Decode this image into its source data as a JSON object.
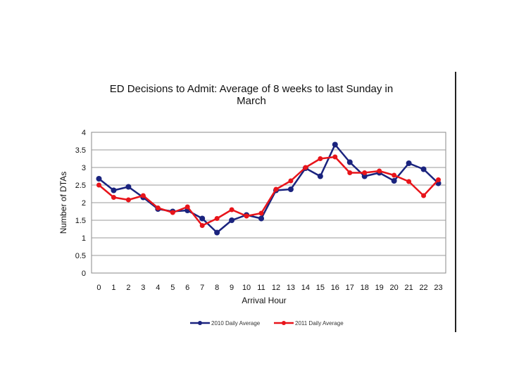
{
  "chart_data": {
    "type": "line",
    "title": [
      "ED Decisions to Admit: Average of 8 weeks to last Sunday in",
      "March"
    ],
    "xlabel": "Arrival Hour",
    "ylabel": "Number of DTAs",
    "ylim": [
      0,
      4
    ],
    "yticks": [
      "0",
      "0.5",
      "1",
      "1.5",
      "2",
      "2.5",
      "3",
      "3.5",
      "4"
    ],
    "categories": [
      "0",
      "1",
      "2",
      "3",
      "4",
      "5",
      "6",
      "7",
      "8",
      "9",
      "10",
      "11",
      "12",
      "13",
      "14",
      "15",
      "16",
      "17",
      "18",
      "19",
      "20",
      "21",
      "22",
      "23"
    ],
    "grid": true,
    "legend_position": "bottom",
    "series": [
      {
        "name": "2010 Daily Average",
        "color": "#1a237e",
        "values": [
          2.68,
          2.35,
          2.45,
          2.15,
          1.82,
          1.75,
          1.78,
          1.55,
          1.15,
          1.5,
          1.65,
          1.55,
          2.35,
          2.38,
          2.98,
          2.75,
          3.65,
          3.15,
          2.75,
          2.85,
          2.62,
          3.12,
          2.95,
          2.55
        ]
      },
      {
        "name": "2011 Daily Average",
        "color": "#e8141a",
        "values": [
          2.5,
          2.15,
          2.08,
          2.2,
          1.85,
          1.72,
          1.88,
          1.35,
          1.55,
          1.8,
          1.62,
          1.7,
          2.38,
          2.62,
          3.0,
          3.25,
          3.3,
          2.85,
          2.85,
          2.9,
          2.78,
          2.6,
          2.2,
          2.65
        ]
      }
    ]
  }
}
